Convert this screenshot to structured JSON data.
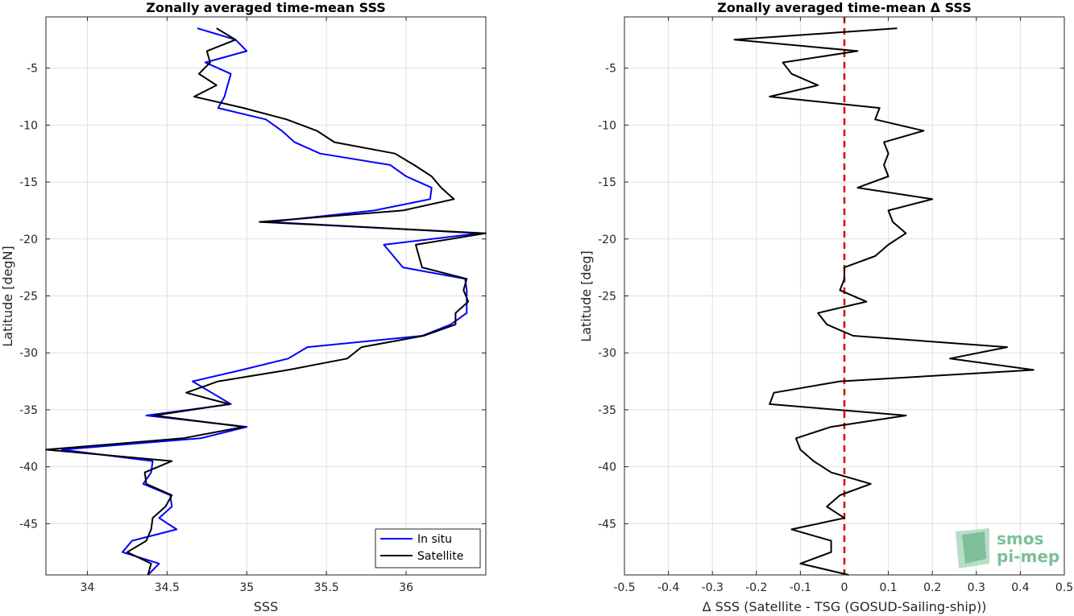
{
  "chart_data": [
    {
      "type": "line",
      "title": "Zonally averaged time-mean SSS",
      "xlabel": "SSS",
      "ylabel": "Latitude [degN]",
      "xlim": [
        33.74,
        36.5
      ],
      "ylim": [
        -49.5,
        -0.5
      ],
      "xticks": [
        34,
        34.5,
        35,
        35.5,
        36
      ],
      "xtick_labels": [
        "34",
        "34.5",
        "35",
        "35.5",
        "36"
      ],
      "yticks": [
        -5,
        -10,
        -15,
        -20,
        -25,
        -30,
        -35,
        -40,
        -45
      ],
      "ytick_labels": [
        "-5",
        "-10",
        "-15",
        "-20",
        "-25",
        "-30",
        "-35",
        "-40",
        "-45"
      ],
      "grid": true,
      "legend_position": "bottom-right",
      "series": [
        {
          "name": "In situ",
          "color": "#0000ff",
          "lat": [
            -1.5,
            -2.5,
            -3.5,
            -4.5,
            -5.5,
            -6.5,
            -7.5,
            -8.5,
            -9.5,
            -10.5,
            -11.5,
            -12.5,
            -13.5,
            -14.5,
            -15.5,
            -16.5,
            -17.5,
            -18.5,
            -19.5,
            -20.5,
            -21.5,
            -22.5,
            -23.5,
            -24.5,
            -25.5,
            -26.5,
            -27.5,
            -28.5,
            -29.5,
            -30.5,
            -31.5,
            -32.5,
            -33.5,
            -34.5,
            -35.5,
            -36.5,
            -37.5,
            -38.5,
            -39.5,
            -40.5,
            -41.5,
            -42.5,
            -43.5,
            -44.5,
            -45.5,
            -46.5,
            -47.5,
            -48.5,
            -49.5
          ],
          "values": [
            34.69,
            34.93,
            35.0,
            34.74,
            34.9,
            34.88,
            34.86,
            34.82,
            35.12,
            35.22,
            35.3,
            35.46,
            35.9,
            36.0,
            36.16,
            36.15,
            35.8,
            35.14,
            36.46,
            35.86,
            35.92,
            35.98,
            36.37,
            36.38,
            36.38,
            36.38,
            36.28,
            36.1,
            35.38,
            35.26,
            34.97,
            34.66,
            34.78,
            34.9,
            34.37,
            35.0,
            34.71,
            33.84,
            34.41,
            34.4,
            34.35,
            34.52,
            34.53,
            34.45,
            34.56,
            34.28,
            34.22,
            34.45,
            34.38
          ]
        },
        {
          "name": "Satellite",
          "color": "#000000",
          "lat": [
            -1.5,
            -2.5,
            -3.5,
            -4.5,
            -5.5,
            -6.5,
            -7.5,
            -8.5,
            -9.5,
            -10.5,
            -11.5,
            -12.5,
            -13.5,
            -14.5,
            -15.5,
            -16.5,
            -17.5,
            -18.5,
            -19.5,
            -20.5,
            -21.5,
            -22.5,
            -23.5,
            -24.5,
            -25.5,
            -26.5,
            -27.5,
            -28.5,
            -29.5,
            -30.5,
            -31.5,
            -32.5,
            -33.5,
            -34.5,
            -35.5,
            -36.5,
            -37.5,
            -38.5,
            -39.5,
            -40.5,
            -41.5,
            -42.5,
            -43.5,
            -44.5,
            -45.5,
            -46.5,
            -47.5,
            -48.5,
            -49.5
          ],
          "values": [
            34.81,
            34.93,
            34.75,
            34.77,
            34.7,
            34.81,
            34.67,
            34.98,
            35.25,
            35.44,
            35.55,
            35.93,
            36.05,
            36.16,
            36.22,
            36.3,
            35.98,
            35.08,
            36.5,
            36.06,
            36.08,
            36.1,
            36.38,
            36.36,
            36.39,
            36.31,
            36.31,
            36.11,
            35.72,
            35.63,
            35.26,
            34.82,
            34.62,
            34.89,
            34.42,
            34.98,
            34.6,
            33.74,
            34.53,
            34.36,
            34.37,
            34.53,
            34.49,
            34.41,
            34.4,
            34.37,
            34.25,
            34.4,
            34.38
          ]
        }
      ]
    },
    {
      "type": "line",
      "title": "Zonally averaged time-mean Δ SSS",
      "xlabel": "Δ SSS (Satellite - TSG (GOSUD-Sailing-ship))",
      "ylabel": "Latitude [deg]",
      "xlim": [
        -0.5,
        0.5
      ],
      "ylim": [
        -49.5,
        -0.5
      ],
      "xticks": [
        -0.5,
        -0.4,
        -0.3,
        -0.2,
        -0.1,
        0,
        0.1,
        0.2,
        0.3,
        0.4,
        0.5
      ],
      "xtick_labels": [
        "-0.5",
        "-0.4",
        "-0.3",
        "-0.2",
        "-0.1",
        "0",
        "0.1",
        "0.2",
        "0.3",
        "0.4",
        "0.5"
      ],
      "yticks": [
        -5,
        -10,
        -15,
        -20,
        -25,
        -30,
        -35,
        -40,
        -45
      ],
      "ytick_labels": [
        "-5",
        "-10",
        "-15",
        "-20",
        "-25",
        "-30",
        "-35",
        "-40",
        "-45"
      ],
      "grid": true,
      "reference_line": {
        "x": 0,
        "color": "#dd0000",
        "style": "dashed"
      },
      "series": [
        {
          "name": "",
          "color": "#000000",
          "lat": [
            -1.5,
            -2.5,
            -3.5,
            -4.5,
            -5.5,
            -6.5,
            -7.5,
            -8.5,
            -9.5,
            -10.5,
            -11.5,
            -12.5,
            -13.5,
            -14.5,
            -15.5,
            -16.5,
            -17.5,
            -18.5,
            -19.5,
            -20.5,
            -21.5,
            -22.5,
            -23.5,
            -24.5,
            -25.5,
            -26.5,
            -27.5,
            -28.5,
            -29.5,
            -30.5,
            -31.5,
            -32.5,
            -33.5,
            -34.5,
            -35.5,
            -36.5,
            -37.5,
            -38.5,
            -39.5,
            -40.5,
            -41.5,
            -42.5,
            -43.5,
            -44.5,
            -45.5,
            -46.5,
            -47.5,
            -48.5,
            -49.5
          ],
          "values": [
            0.12,
            -0.25,
            0.03,
            -0.14,
            -0.12,
            -0.06,
            -0.17,
            0.08,
            0.07,
            0.18,
            0.09,
            0.1,
            0.09,
            0.1,
            0.03,
            0.2,
            0.1,
            0.11,
            0.14,
            0.1,
            0.07,
            0.0,
            0.0,
            -0.01,
            0.05,
            -0.06,
            -0.04,
            0.02,
            0.37,
            0.24,
            0.43,
            -0.01,
            -0.16,
            -0.17,
            0.14,
            -0.03,
            -0.11,
            -0.1,
            -0.07,
            -0.03,
            0.06,
            -0.01,
            -0.04,
            0.0,
            -0.12,
            -0.03,
            -0.03,
            -0.1,
            0.01
          ]
        }
      ]
    }
  ],
  "legend": {
    "items": [
      "In situ",
      "Satellite"
    ]
  },
  "logo": {
    "line1": "smos",
    "line2": "pi-mep"
  }
}
